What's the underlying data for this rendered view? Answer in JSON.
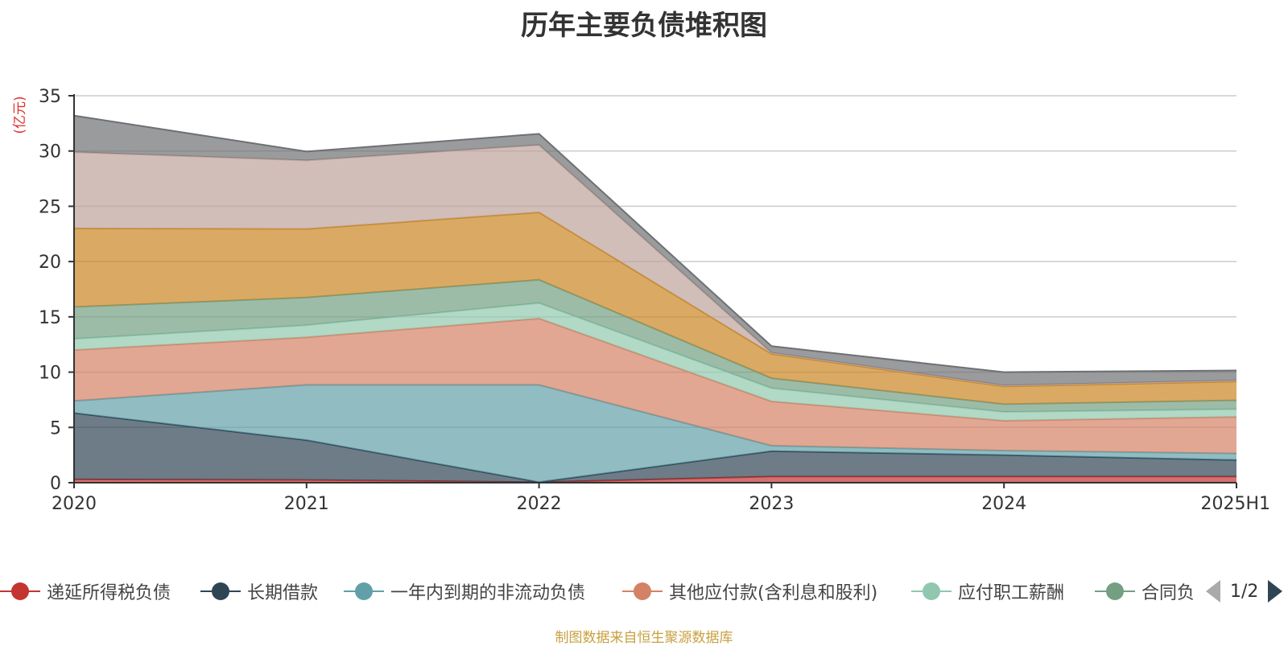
{
  "chart_data": {
    "type": "area",
    "stacked": true,
    "title": "历年主要负债堆积图",
    "ylabel": "(亿元)",
    "xlabel": "",
    "categories": [
      "2020",
      "2021",
      "2022",
      "2023",
      "2024",
      "2025H1"
    ],
    "ylim": [
      0,
      35
    ],
    "yticks": [
      0,
      5,
      10,
      15,
      20,
      25,
      30,
      35
    ],
    "grid": true,
    "legend_position": "bottom",
    "series": [
      {
        "name": "递延所得税负债",
        "color": "#c23531",
        "values": [
          0.3,
          0.25,
          0.05,
          0.55,
          0.55,
          0.55
        ]
      },
      {
        "name": "长期借款",
        "color": "#2f4554",
        "values": [
          6.0,
          3.6,
          0.0,
          2.3,
          1.95,
          1.5
        ]
      },
      {
        "name": "一年内到期的非流动负债",
        "color": "#61a0a8",
        "values": [
          1.1,
          5.0,
          8.8,
          0.5,
          0.4,
          0.6
        ]
      },
      {
        "name": "其他应付款(含利息和股利)",
        "color": "#d48265",
        "values": [
          4.6,
          4.3,
          6.0,
          4.0,
          2.7,
          3.3
        ]
      },
      {
        "name": "应付职工薪酬",
        "color": "#91c7ae",
        "values": [
          1.0,
          1.1,
          1.4,
          1.2,
          0.8,
          0.7
        ]
      },
      {
        "name": "合同负债",
        "color": "#749f83",
        "values": [
          2.9,
          2.5,
          2.1,
          0.9,
          0.7,
          0.8
        ]
      },
      {
        "name": "",
        "color": "#ca8622",
        "values": [
          7.1,
          6.2,
          6.1,
          2.2,
          1.6,
          1.7
        ]
      },
      {
        "name": "",
        "color": "#bda29a",
        "values": [
          6.9,
          6.2,
          6.1,
          0.1,
          0.1,
          0.1
        ]
      },
      {
        "name": "",
        "color": "#6e7074",
        "values": [
          3.3,
          0.8,
          1.0,
          0.6,
          1.2,
          0.9
        ]
      }
    ]
  },
  "legend": {
    "items": [
      {
        "label": "递延所得税负债",
        "color": "#c23531"
      },
      {
        "label": "长期借款",
        "color": "#2f4554"
      },
      {
        "label": "一年内到期的非流动负债",
        "color": "#61a0a8"
      },
      {
        "label": "其他应付款(含利息和股利)",
        "color": "#d48265"
      },
      {
        "label": "应付职工薪酬",
        "color": "#91c7ae"
      },
      {
        "label": "合同负",
        "color": "#749f83"
      }
    ],
    "page_indicator": "1/2"
  },
  "footer_note": "制图数据来自恒生聚源数据库"
}
